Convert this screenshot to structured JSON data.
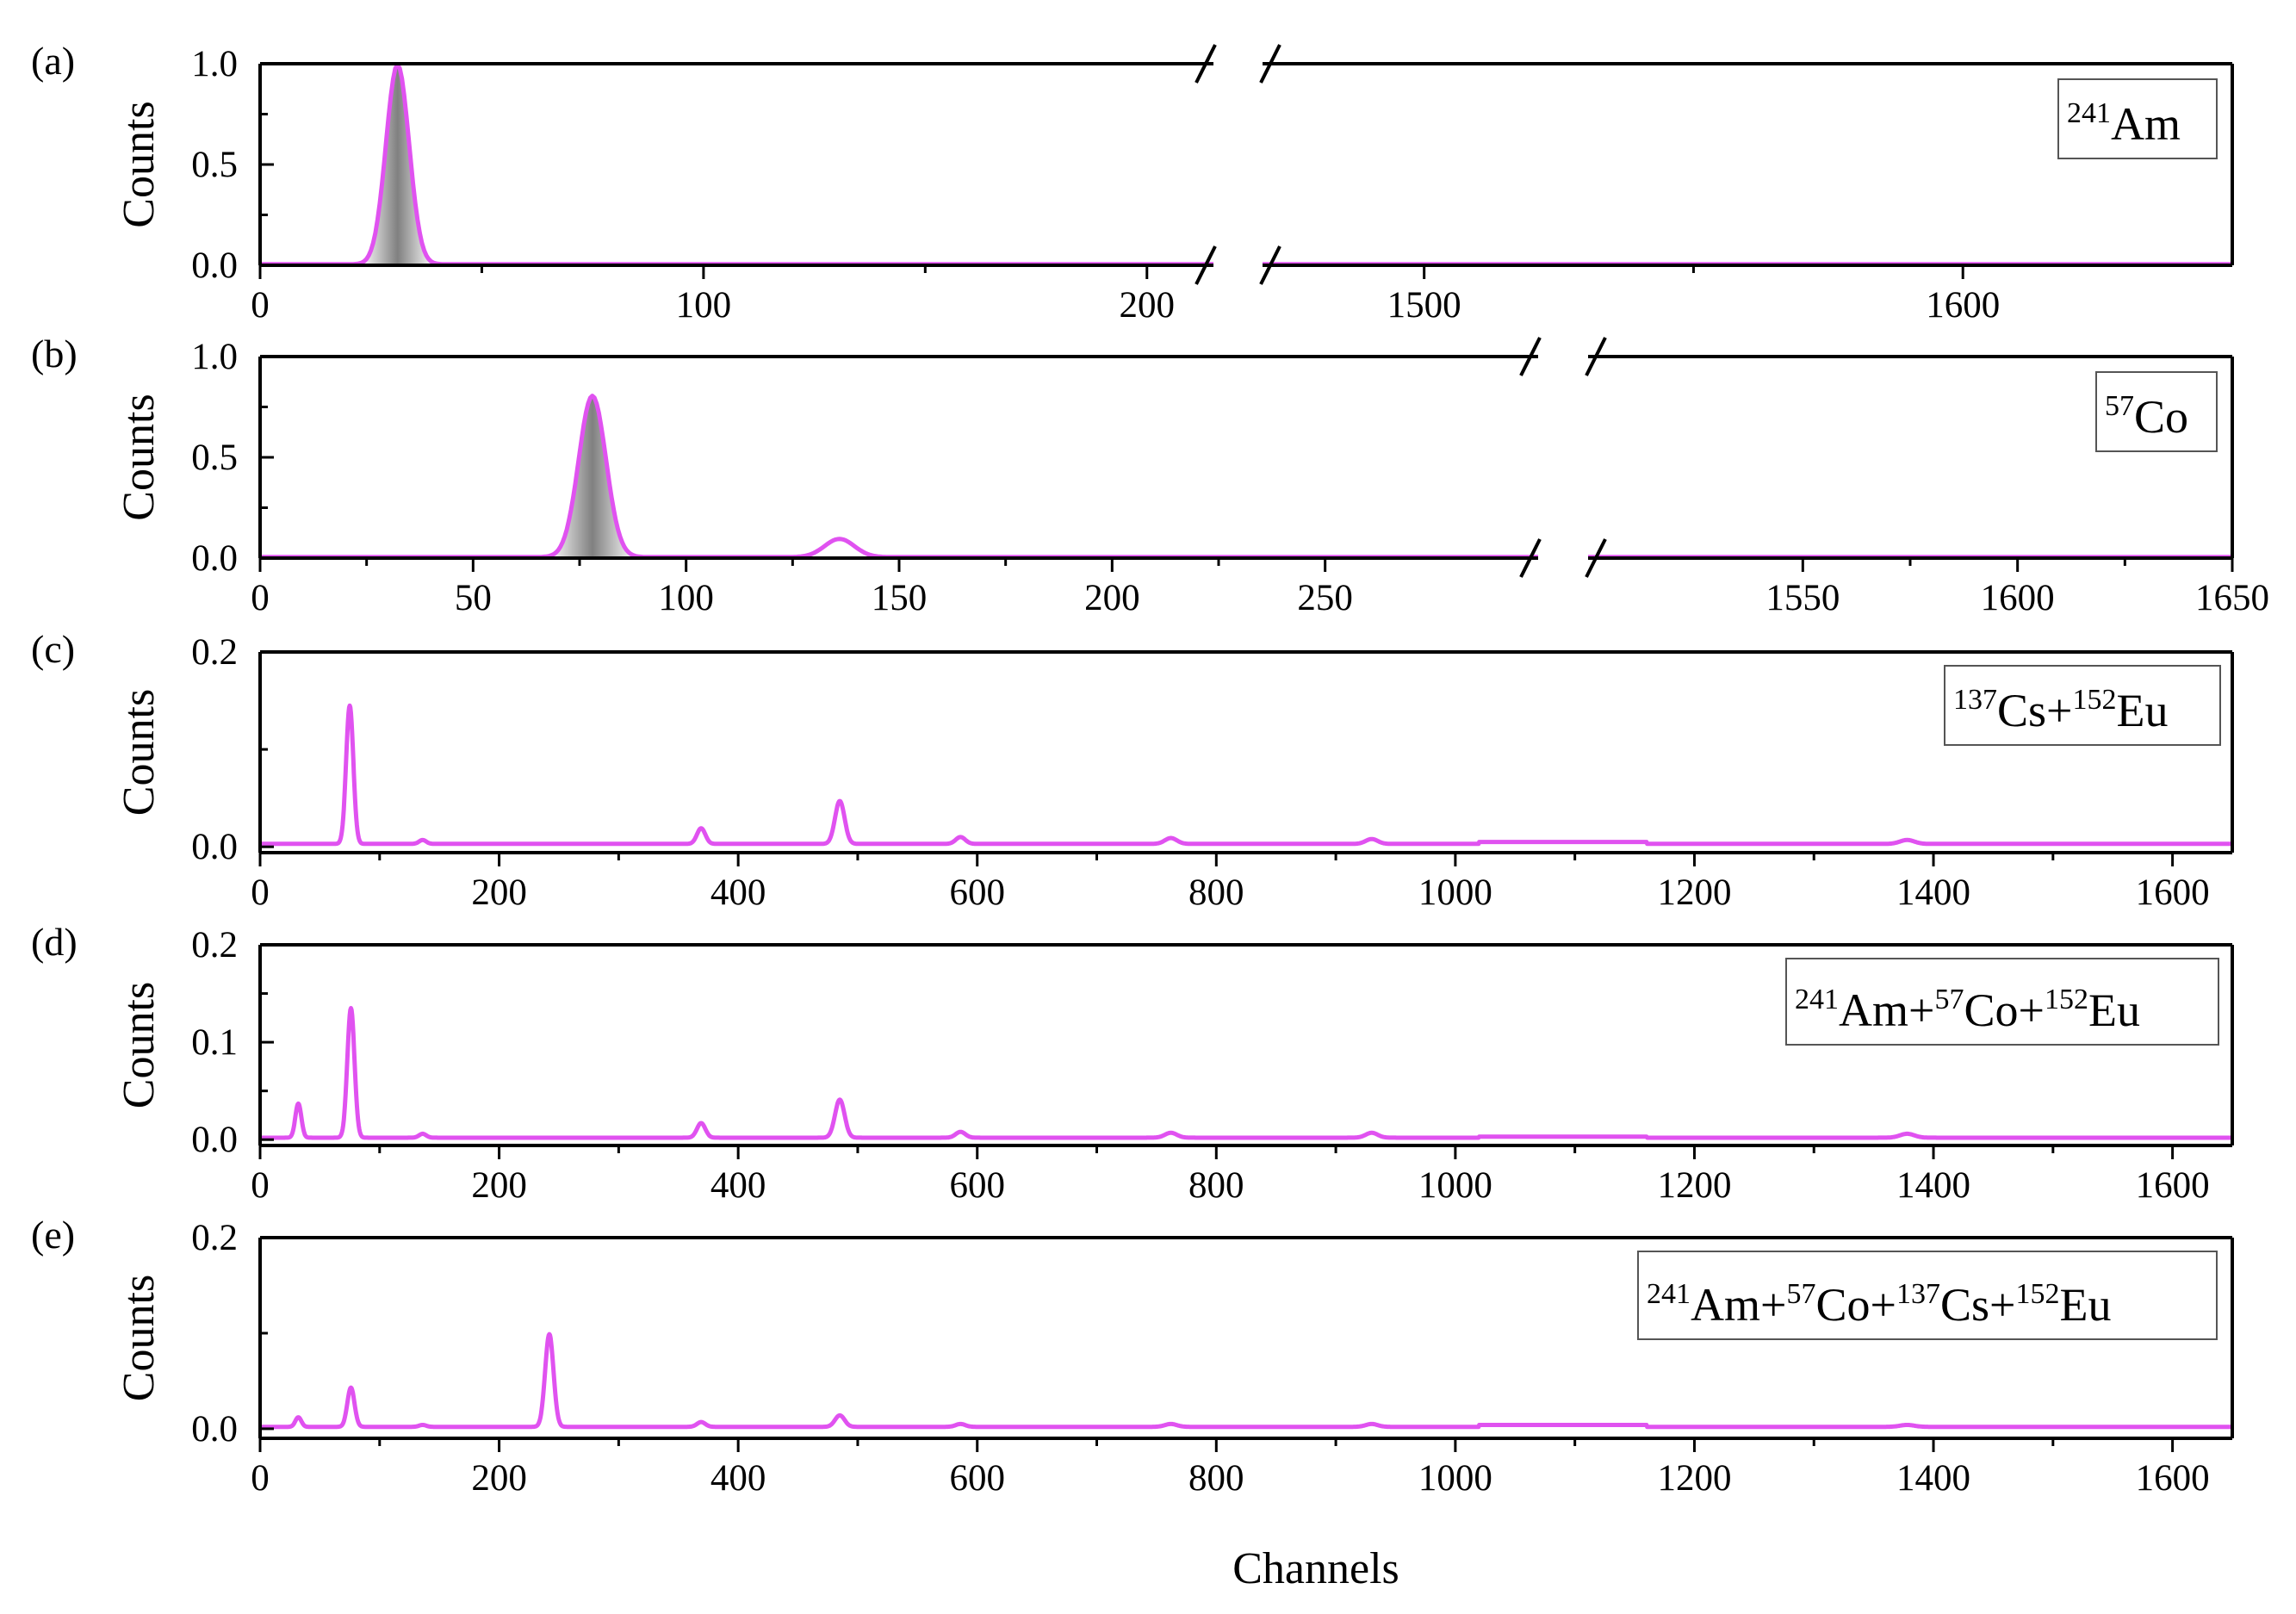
{
  "colors": {
    "series": "#e052f0",
    "fill_dark": "#808080",
    "axis": "#000000"
  },
  "x_axis_label": "Channels",
  "chart_data": [
    {
      "type": "line",
      "panel": "(a)",
      "ylabel": "Counts",
      "ylim": [
        0,
        1.0
      ],
      "yticks": [
        0.0,
        0.5,
        1.0
      ],
      "ytick_labels": [
        "0.0",
        "0.5",
        "1.0"
      ],
      "xlim": [
        0,
        1650
      ],
      "x_break": [
        215,
        1470
      ],
      "xticks": [
        0,
        100,
        200,
        1500,
        1600
      ],
      "xtick_labels": [
        "0",
        "100",
        "200",
        "1500",
        "1600"
      ],
      "legend": [
        {
          "sup": "241",
          "text": "Am"
        }
      ],
      "filled_peaks": true,
      "series": [
        {
          "baseline": 0.005,
          "peaks": [
            {
              "x": 31,
              "height": 0.99,
              "sigma": 2.6
            }
          ],
          "plateaus": []
        }
      ]
    },
    {
      "type": "line",
      "panel": "(b)",
      "ylabel": "Counts",
      "ylim": [
        0,
        1.0
      ],
      "yticks": [
        0.0,
        0.5,
        1.0
      ],
      "ytick_labels": [
        "0.0",
        "0.5",
        "1.0"
      ],
      "xlim": [
        0,
        1650
      ],
      "x_break": [
        300,
        1500
      ],
      "xticks": [
        0,
        50,
        100,
        150,
        200,
        250,
        1550,
        1600,
        1650
      ],
      "xtick_labels": [
        "0",
        "50",
        "100",
        "150",
        "200",
        "250",
        "1550",
        "1600",
        "1650"
      ],
      "legend": [
        {
          "sup": "57",
          "text": "Co"
        }
      ],
      "filled_peaks": true,
      "series": [
        {
          "baseline": 0.005,
          "peaks": [
            {
              "x": 78,
              "height": 0.8,
              "sigma": 3.2
            },
            {
              "x": 136,
              "height": 0.09,
              "sigma": 3.5
            }
          ],
          "plateaus": []
        }
      ]
    },
    {
      "type": "line",
      "panel": "(c)",
      "ylabel": "Counts",
      "ylim": [
        -0.006,
        0.2
      ],
      "yticks": [
        0.0,
        0.2
      ],
      "ytick_labels": [
        "0.0",
        "0.2"
      ],
      "xlim": [
        0,
        1650
      ],
      "x_break": null,
      "xticks": [
        0,
        200,
        400,
        600,
        800,
        1000,
        1200,
        1400,
        1600
      ],
      "xtick_labels": [
        "0",
        "200",
        "400",
        "600",
        "800",
        "1000",
        "1200",
        "1400",
        "1600"
      ],
      "legend": [
        {
          "sup": "137",
          "text": "Cs+"
        },
        {
          "sup": "152",
          "text": "Eu"
        }
      ],
      "filled_peaks": false,
      "series": [
        {
          "baseline": 0.003,
          "peaks": [
            {
              "x": 75,
              "height": 0.142,
              "sigma": 3.0
            },
            {
              "x": 136,
              "height": 0.004,
              "sigma": 3.0
            },
            {
              "x": 369,
              "height": 0.016,
              "sigma": 3.5
            },
            {
              "x": 485,
              "height": 0.044,
              "sigma": 4.0
            },
            {
              "x": 586,
              "height": 0.007,
              "sigma": 4.0
            },
            {
              "x": 762,
              "height": 0.006,
              "sigma": 5.0
            },
            {
              "x": 930,
              "height": 0.005,
              "sigma": 5.0
            },
            {
              "x": 1378,
              "height": 0.004,
              "sigma": 6.0
            }
          ],
          "plateaus": [
            {
              "from": 1020,
              "to": 1160,
              "height": 0.002
            }
          ]
        }
      ]
    },
    {
      "type": "line",
      "panel": "(d)",
      "ylabel": "Counts",
      "ylim": [
        -0.006,
        0.2
      ],
      "yticks": [
        0.0,
        0.1,
        0.2
      ],
      "ytick_labels": [
        "0.0",
        "0.1",
        "0.2"
      ],
      "xlim": [
        0,
        1650
      ],
      "x_break": null,
      "xticks": [
        0,
        200,
        400,
        600,
        800,
        1000,
        1200,
        1400,
        1600
      ],
      "xtick_labels": [
        "0",
        "200",
        "400",
        "600",
        "800",
        "1000",
        "1200",
        "1400",
        "1600"
      ],
      "legend": [
        {
          "sup": "241",
          "text": "Am+"
        },
        {
          "sup": "57",
          "text": "Co+"
        },
        {
          "sup": "152",
          "text": "Eu"
        }
      ],
      "filled_peaks": false,
      "series": [
        {
          "baseline": 0.002,
          "peaks": [
            {
              "x": 32,
              "height": 0.035,
              "sigma": 2.5
            },
            {
              "x": 76,
              "height": 0.133,
              "sigma": 3.0
            },
            {
              "x": 136,
              "height": 0.004,
              "sigma": 3.0
            },
            {
              "x": 369,
              "height": 0.015,
              "sigma": 3.5
            },
            {
              "x": 485,
              "height": 0.039,
              "sigma": 4.0
            },
            {
              "x": 586,
              "height": 0.006,
              "sigma": 4.0
            },
            {
              "x": 762,
              "height": 0.005,
              "sigma": 5.0
            },
            {
              "x": 930,
              "height": 0.005,
              "sigma": 5.0
            },
            {
              "x": 1378,
              "height": 0.004,
              "sigma": 6.0
            }
          ],
          "plateaus": [
            {
              "from": 1020,
              "to": 1160,
              "height": 0.001
            }
          ]
        }
      ]
    },
    {
      "type": "line",
      "panel": "(e)",
      "ylabel": "Counts",
      "ylim": [
        -0.01,
        0.2
      ],
      "yticks": [
        0.0,
        0.2
      ],
      "ytick_labels": [
        "0.0",
        "0.2"
      ],
      "xlim": [
        0,
        1650
      ],
      "x_break": null,
      "xticks": [
        0,
        200,
        400,
        600,
        800,
        1000,
        1200,
        1400,
        1600
      ],
      "xtick_labels": [
        "0",
        "200",
        "400",
        "600",
        "800",
        "1000",
        "1200",
        "1400",
        "1600"
      ],
      "legend": [
        {
          "sup": "241",
          "text": "Am+"
        },
        {
          "sup": "57",
          "text": "Co+"
        },
        {
          "sup": "137",
          "text": "Cs+"
        },
        {
          "sup": "152",
          "text": "Eu"
        }
      ],
      "filled_peaks": false,
      "series": [
        {
          "baseline": 0.002,
          "peaks": [
            {
              "x": 32,
              "height": 0.01,
              "sigma": 2.5
            },
            {
              "x": 76,
              "height": 0.041,
              "sigma": 3.0
            },
            {
              "x": 136,
              "height": 0.002,
              "sigma": 3.0
            },
            {
              "x": 242,
              "height": 0.097,
              "sigma": 3.5
            },
            {
              "x": 369,
              "height": 0.005,
              "sigma": 3.5
            },
            {
              "x": 485,
              "height": 0.012,
              "sigma": 4.0
            },
            {
              "x": 586,
              "height": 0.003,
              "sigma": 4.0
            },
            {
              "x": 762,
              "height": 0.003,
              "sigma": 5.0
            },
            {
              "x": 930,
              "height": 0.003,
              "sigma": 5.0
            },
            {
              "x": 1378,
              "height": 0.002,
              "sigma": 6.0
            }
          ],
          "plateaus": [
            {
              "from": 1020,
              "to": 1160,
              "height": 0.002
            }
          ]
        }
      ]
    }
  ]
}
